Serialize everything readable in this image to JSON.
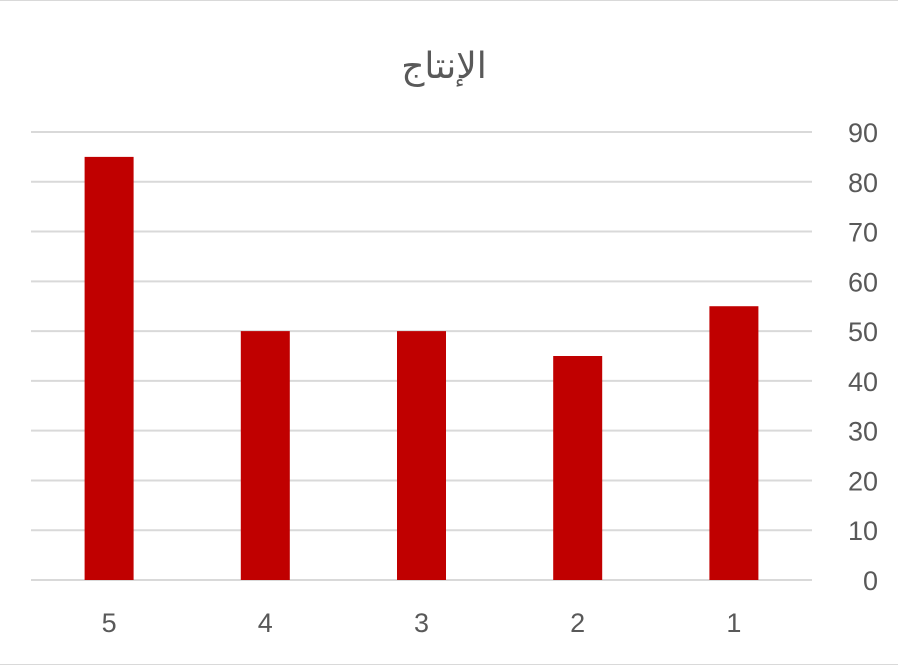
{
  "chart_data": {
    "type": "bar",
    "title": "الإنتاج",
    "categories": [
      "1",
      "2",
      "3",
      "4",
      "5"
    ],
    "values": [
      55,
      45,
      50,
      50,
      85
    ],
    "ylim": [
      0,
      90
    ],
    "y_ticks": [
      "0",
      "10",
      "20",
      "30",
      "40",
      "50",
      "60",
      "70",
      "80",
      "90"
    ],
    "x_axis_direction": "right-to-left",
    "y_axis_position": "right",
    "grid": true,
    "legend": "none",
    "bar_color": "#c00000"
  }
}
